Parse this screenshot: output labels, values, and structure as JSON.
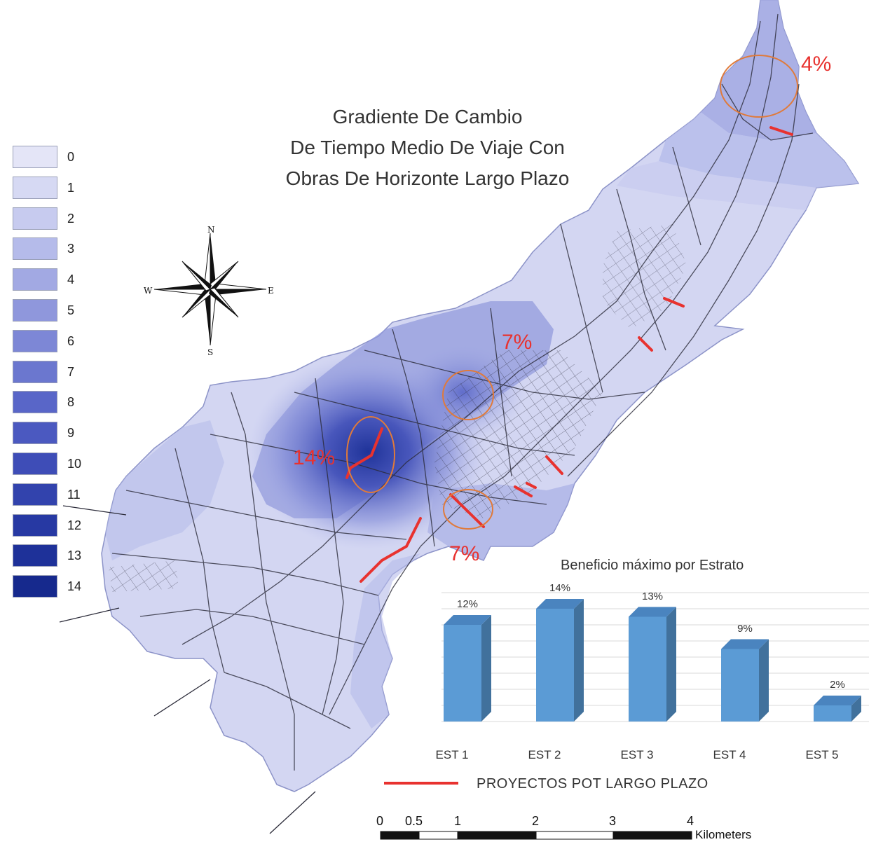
{
  "map": {
    "title_lines": [
      "Gradiente De Cambio",
      "De Tiempo Medio De Viaje Con",
      "Obras De Horizonte Largo Plazo"
    ]
  },
  "legend": {
    "values": [
      "0",
      "1",
      "2",
      "3",
      "4",
      "5",
      "6",
      "7",
      "8",
      "9",
      "10",
      "11",
      "12",
      "13",
      "14"
    ],
    "colors": [
      "#e4e5f7",
      "#d6d9f3",
      "#c7cbef",
      "#b5bbea",
      "#a2a9e3",
      "#8f97dc",
      "#7d87d6",
      "#6b77cf",
      "#5966c8",
      "#4b59c0",
      "#3e4db7",
      "#3243ad",
      "#2739a3",
      "#1e3199",
      "#16298d"
    ]
  },
  "compass": {
    "n": "N",
    "s": "S",
    "e": "E",
    "w": "W"
  },
  "callouts": {
    "c4": "4%",
    "c7a": "7%",
    "c7b": "7%",
    "c14": "14%"
  },
  "colors": {
    "project_line": "#e8322f",
    "bar": "#5b9bd5",
    "callout_circle": "#e07a3a"
  },
  "chart_data": {
    "type": "bar",
    "title": "Beneficio máximo por Estrato",
    "categories": [
      "EST 1",
      "EST 2",
      "EST 3",
      "EST 4",
      "EST 5"
    ],
    "values": [
      12,
      14,
      13,
      9,
      2
    ],
    "value_labels": [
      "12%",
      "14%",
      "13%",
      "9%",
      "2%"
    ],
    "ylim": [
      0,
      16
    ],
    "grid": true
  },
  "legend_project": {
    "label": "PROYECTOS POT LARGO PLAZO"
  },
  "scalebar": {
    "ticks": [
      "0",
      "0.5",
      "1",
      "2",
      "3",
      "4"
    ],
    "unit": "Kilometers"
  }
}
